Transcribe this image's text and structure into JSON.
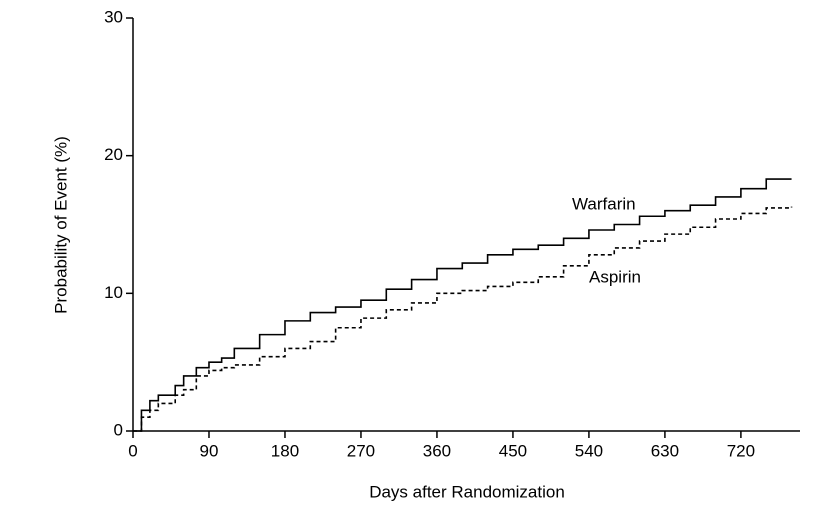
{
  "chart_data": {
    "type": "line",
    "x_label": "Days after Randomization",
    "y_label": "Probability of Event (%)",
    "xlim": [
      0,
      790
    ],
    "xticks": [
      0,
      90,
      180,
      270,
      360,
      450,
      540,
      630,
      720
    ],
    "ylim": [
      0,
      30
    ],
    "yticks": [
      0,
      10,
      20,
      30
    ],
    "step": true,
    "x": [
      0,
      10,
      20,
      30,
      50,
      60,
      75,
      90,
      105,
      120,
      150,
      180,
      210,
      240,
      270,
      300,
      330,
      360,
      390,
      420,
      450,
      480,
      510,
      540,
      570,
      600,
      630,
      660,
      690,
      720,
      750,
      780
    ],
    "series": [
      {
        "name": "Warfarin",
        "color": "#000000",
        "dash": "none",
        "values": [
          0,
          1.5,
          2.2,
          2.6,
          3.3,
          4.0,
          4.6,
          5.0,
          5.3,
          6.0,
          7.0,
          8.0,
          8.6,
          9.0,
          9.5,
          10.3,
          11.0,
          11.8,
          12.2,
          12.8,
          13.2,
          13.5,
          14.0,
          14.6,
          15.0,
          15.6,
          16.0,
          16.4,
          17.0,
          17.6,
          18.3,
          18.3
        ]
      },
      {
        "name": "Aspirin",
        "color": "#000000",
        "dash": "4 3",
        "values": [
          0,
          1.0,
          1.5,
          2.0,
          2.6,
          3.0,
          4.0,
          4.4,
          4.6,
          4.8,
          5.4,
          6.0,
          6.5,
          7.5,
          8.2,
          8.8,
          9.3,
          10.0,
          10.2,
          10.5,
          10.8,
          11.2,
          12.0,
          12.8,
          13.3,
          13.8,
          14.3,
          14.8,
          15.4,
          15.8,
          16.2,
          16.3
        ]
      }
    ]
  }
}
